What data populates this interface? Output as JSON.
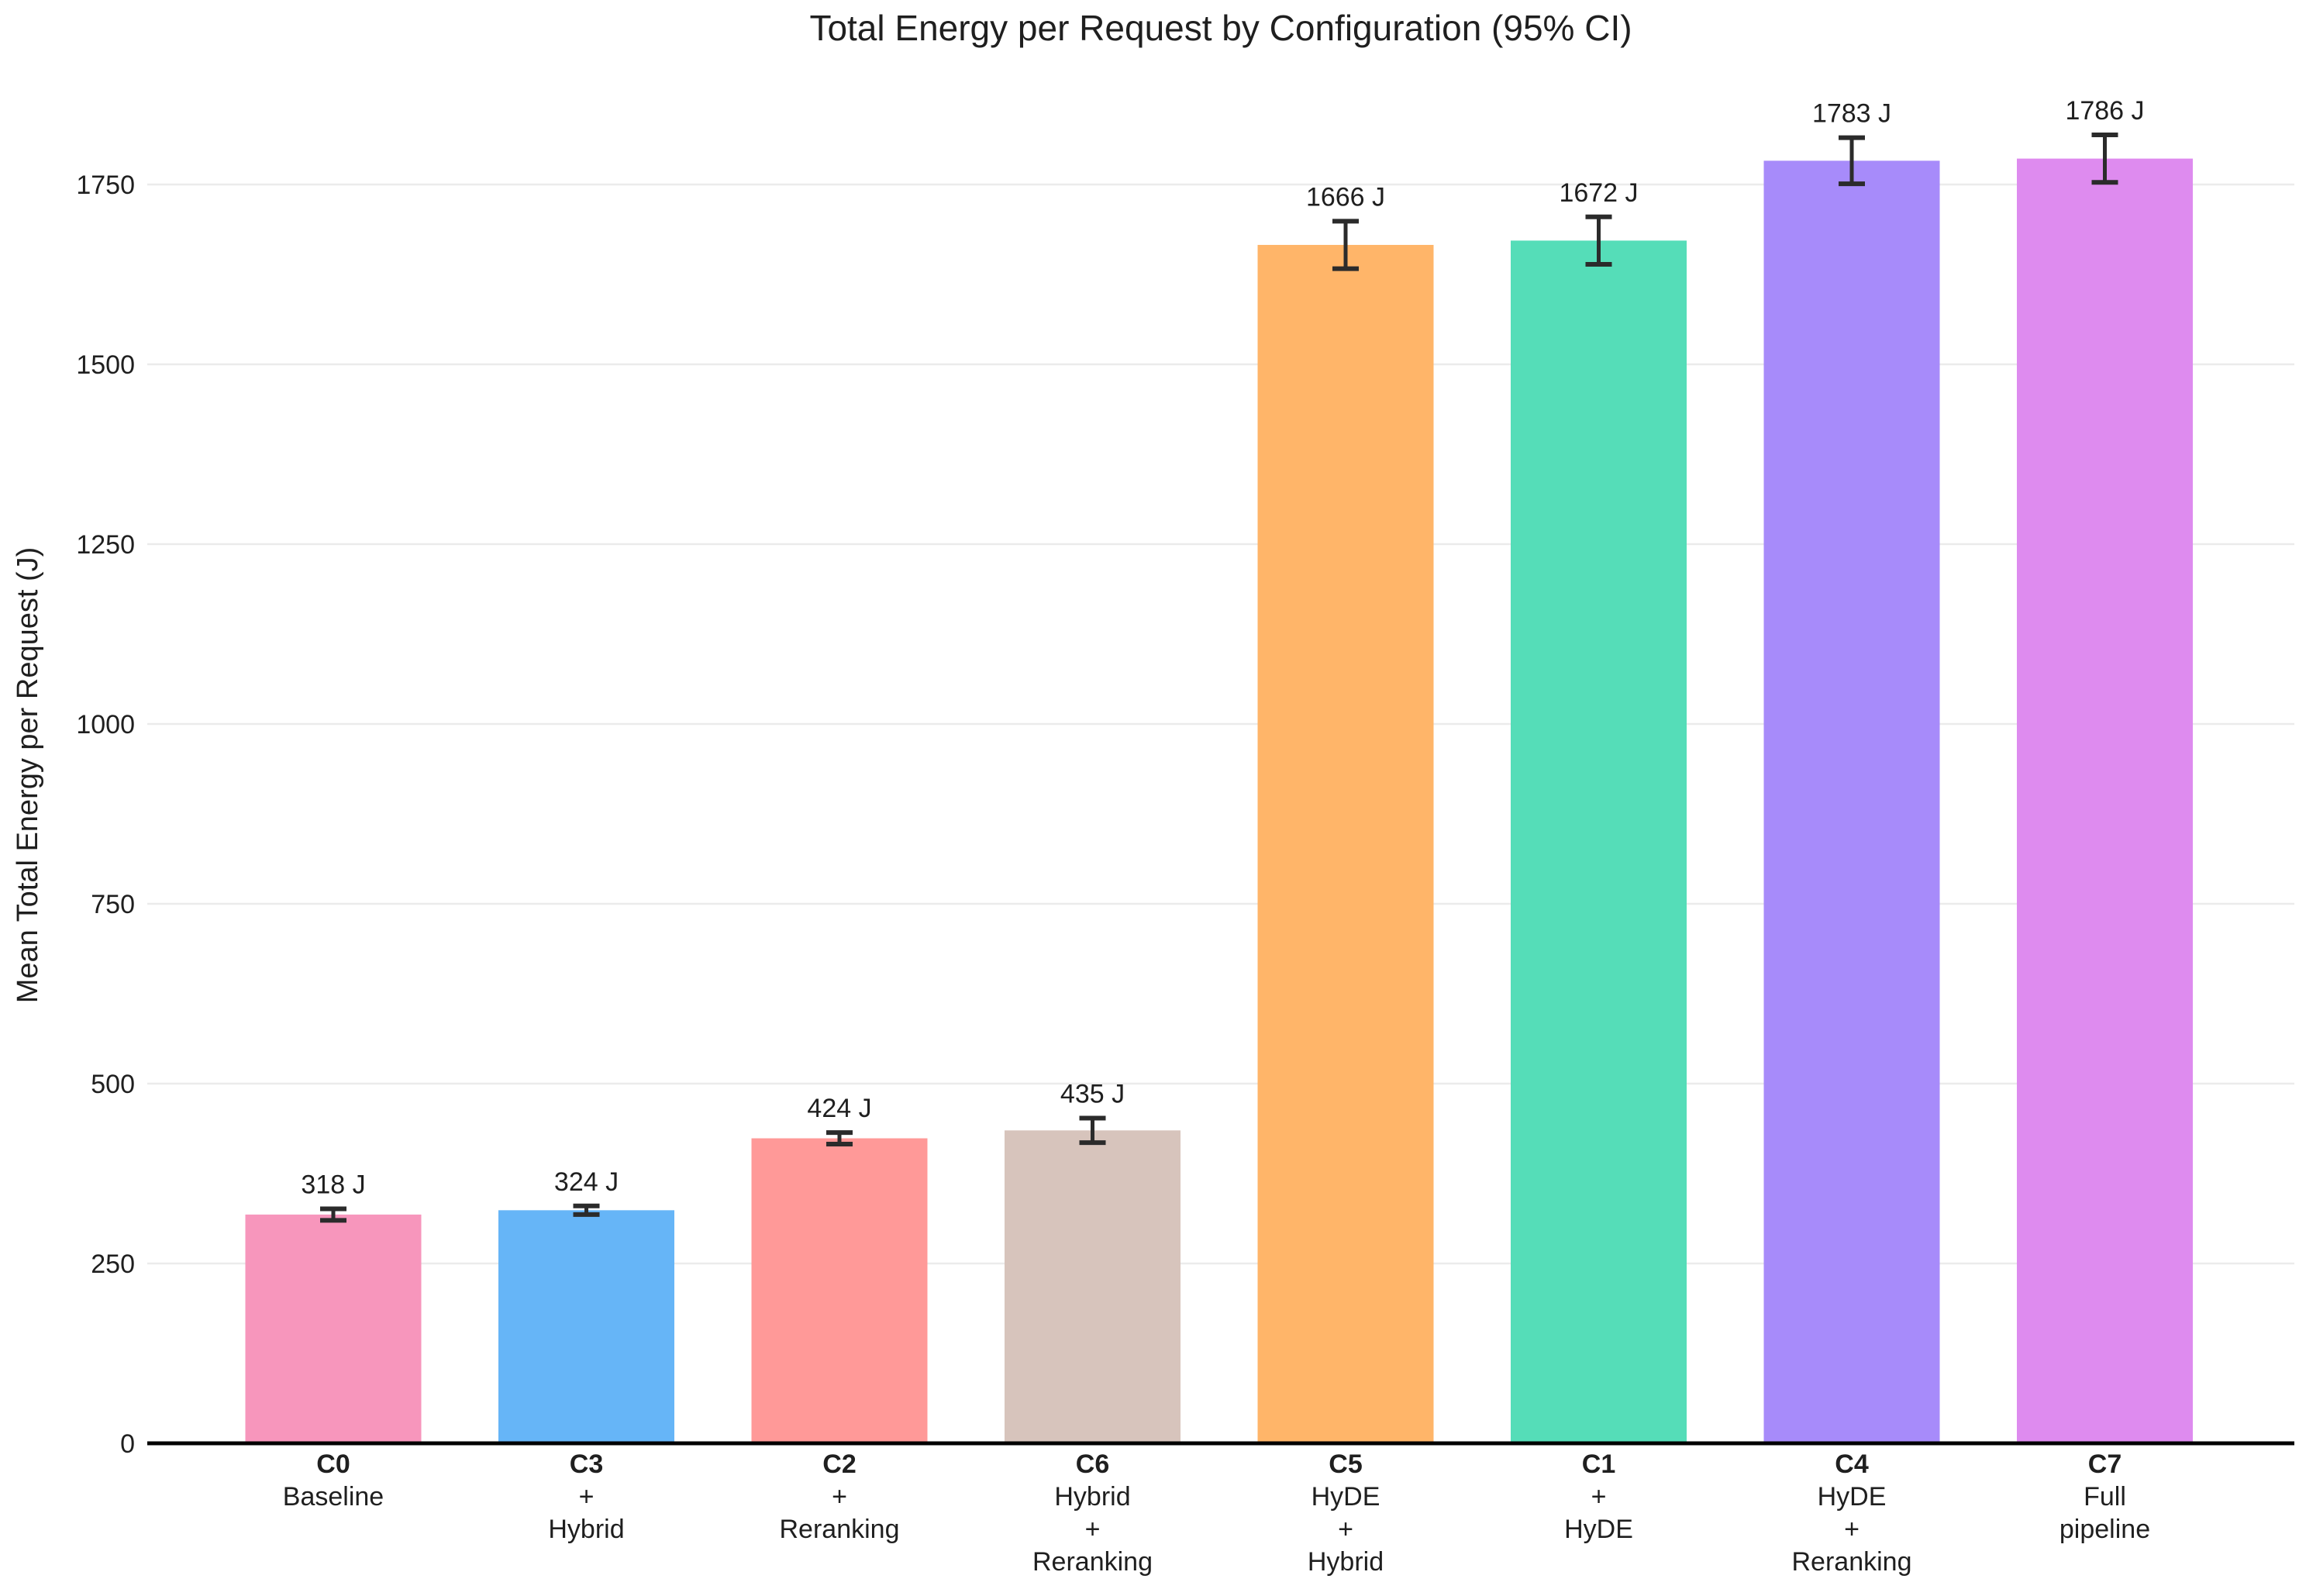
{
  "chart_data": {
    "type": "bar",
    "title": "Total Energy per Request by Configuration (95% CI)",
    "ylabel": "Mean Total Energy per Request (J)",
    "xlabel": "",
    "legend_position": "none",
    "grid": "horizontal-light",
    "ylim": [
      0,
      1880
    ],
    "y_ticks": [
      0,
      250,
      500,
      750,
      1000,
      1250,
      1500,
      1750
    ],
    "categories": [
      {
        "code": "C0",
        "desc_lines": [
          "Baseline"
        ]
      },
      {
        "code": "C3",
        "desc_lines": [
          "+",
          "Hybrid"
        ]
      },
      {
        "code": "C2",
        "desc_lines": [
          "+",
          "Reranking"
        ]
      },
      {
        "code": "C6",
        "desc_lines": [
          "Hybrid",
          "+",
          "Reranking"
        ]
      },
      {
        "code": "C5",
        "desc_lines": [
          "HyDE",
          "+",
          "Hybrid"
        ]
      },
      {
        "code": "C1",
        "desc_lines": [
          "+",
          "HyDE"
        ]
      },
      {
        "code": "C4",
        "desc_lines": [
          "HyDE",
          "+",
          "Reranking"
        ]
      },
      {
        "code": "C7",
        "desc_lines": [
          "Full",
          "pipeline"
        ]
      }
    ],
    "values": [
      318,
      324,
      424,
      435,
      1666,
      1672,
      1783,
      1786
    ],
    "value_labels": [
      "318 J",
      "324 J",
      "424 J",
      "435 J",
      "1666 J",
      "1672 J",
      "1783 J",
      "1786 J"
    ],
    "ci95": [
      8,
      6,
      8,
      17,
      33,
      33,
      32,
      33
    ],
    "bar_colors": [
      "#F796BC",
      "#66B5F7",
      "#FF9998",
      "#D7C4BC",
      "#FFB569",
      "#55DDB8",
      "#A78BFA",
      "#DE8BEF"
    ],
    "colors": {
      "error_bar": "#2b2b2b",
      "axis_line": "#000000",
      "grid_line": "#ebebeb",
      "tick_text": "#262626",
      "value_text": "#1f1f1f",
      "category_text": "#1f1f1f",
      "background": "#ffffff"
    }
  }
}
